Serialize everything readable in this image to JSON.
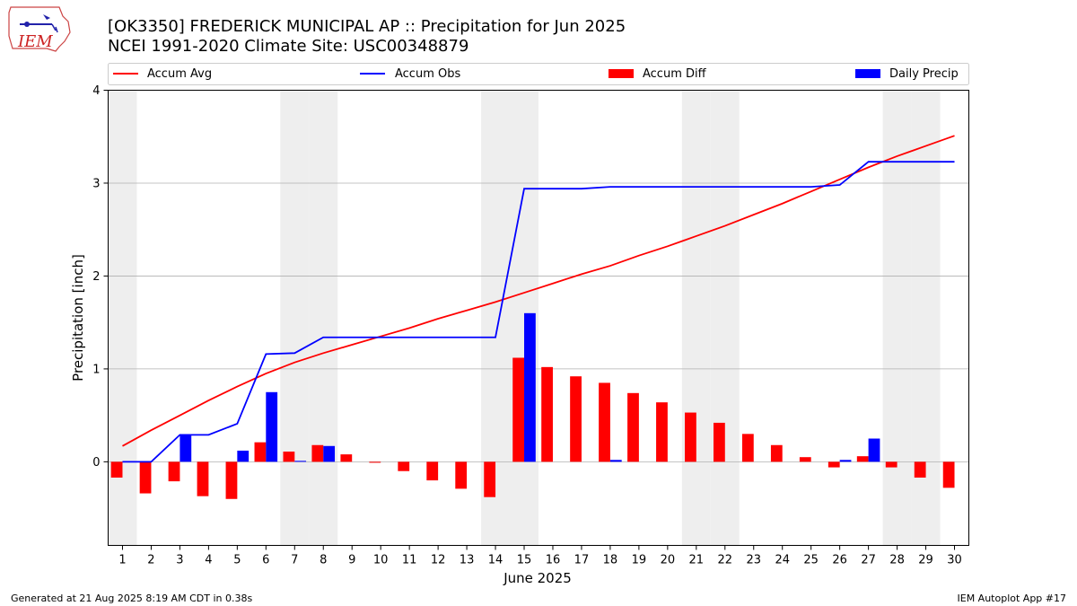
{
  "header": {
    "title_line1": "[OK3350] FREDERICK MUNICIPAL AP :: Precipitation for Jun 2025",
    "title_line2": "NCEI 1991-2020 Climate Site: USC00348879"
  },
  "logo": {
    "text": "IEM"
  },
  "footer": {
    "generated": "Generated at 21 Aug 2025 8:19 AM CDT in 0.38s",
    "app": "IEM Autoplot App #17"
  },
  "colors": {
    "accum_avg": "#ff0000",
    "accum_obs": "#0000ff",
    "accum_diff": "#ff0000",
    "daily_precip": "#0000ff",
    "weekend_band": "#eeeeee",
    "grid": "#b0b0b0"
  },
  "chart_data": {
    "type": "bar",
    "xlabel": "June 2025",
    "ylabel": "Precipitation [inch]",
    "ylim": [
      -0.9,
      4
    ],
    "yticks": [
      0,
      1,
      2,
      3,
      4
    ],
    "grid": "horizontal",
    "legend_placement": "top",
    "weekend_days": [
      1,
      7,
      8,
      14,
      15,
      21,
      22,
      28,
      29
    ],
    "x": [
      1,
      2,
      3,
      4,
      5,
      6,
      7,
      8,
      9,
      10,
      11,
      12,
      13,
      14,
      15,
      16,
      17,
      18,
      19,
      20,
      21,
      22,
      23,
      24,
      25,
      26,
      27,
      28,
      29,
      30
    ],
    "series": [
      {
        "name": "Accum Avg",
        "kind": "line",
        "values": [
          0.17,
          0.34,
          0.5,
          0.66,
          0.81,
          0.95,
          1.07,
          1.17,
          1.26,
          1.35,
          1.44,
          1.54,
          1.63,
          1.72,
          1.82,
          1.92,
          2.02,
          2.11,
          2.22,
          2.32,
          2.43,
          2.54,
          2.66,
          2.78,
          2.91,
          3.04,
          3.17,
          3.29,
          3.4,
          3.51
        ]
      },
      {
        "name": "Accum Obs",
        "kind": "line",
        "values": [
          0.0,
          0.0,
          0.29,
          0.29,
          0.41,
          1.16,
          1.17,
          1.34,
          1.34,
          1.34,
          1.34,
          1.34,
          1.34,
          1.34,
          2.94,
          2.94,
          2.94,
          2.96,
          2.96,
          2.96,
          2.96,
          2.96,
          2.96,
          2.96,
          2.96,
          2.98,
          3.23,
          3.23,
          3.23,
          3.23
        ]
      },
      {
        "name": "Accum Diff",
        "kind": "bar",
        "values": [
          -0.17,
          -0.34,
          -0.21,
          -0.37,
          -0.4,
          0.21,
          0.11,
          0.18,
          0.08,
          -0.01,
          -0.1,
          -0.2,
          -0.29,
          -0.38,
          1.12,
          1.02,
          0.92,
          0.85,
          0.74,
          0.64,
          0.53,
          0.42,
          0.3,
          0.18,
          0.05,
          -0.06,
          0.06,
          -0.06,
          -0.17,
          -0.28
        ]
      },
      {
        "name": "Daily Precip",
        "kind": "bar",
        "values": [
          0.0,
          0.0,
          0.29,
          0.0,
          0.12,
          0.75,
          0.01,
          0.17,
          0.0,
          0.0,
          0.0,
          0.0,
          0.0,
          0.0,
          1.6,
          0.0,
          0.0,
          0.02,
          0.0,
          0.0,
          0.0,
          0.0,
          0.0,
          0.0,
          0.0,
          0.02,
          0.25,
          0.0,
          0.0,
          0.0
        ]
      }
    ]
  }
}
